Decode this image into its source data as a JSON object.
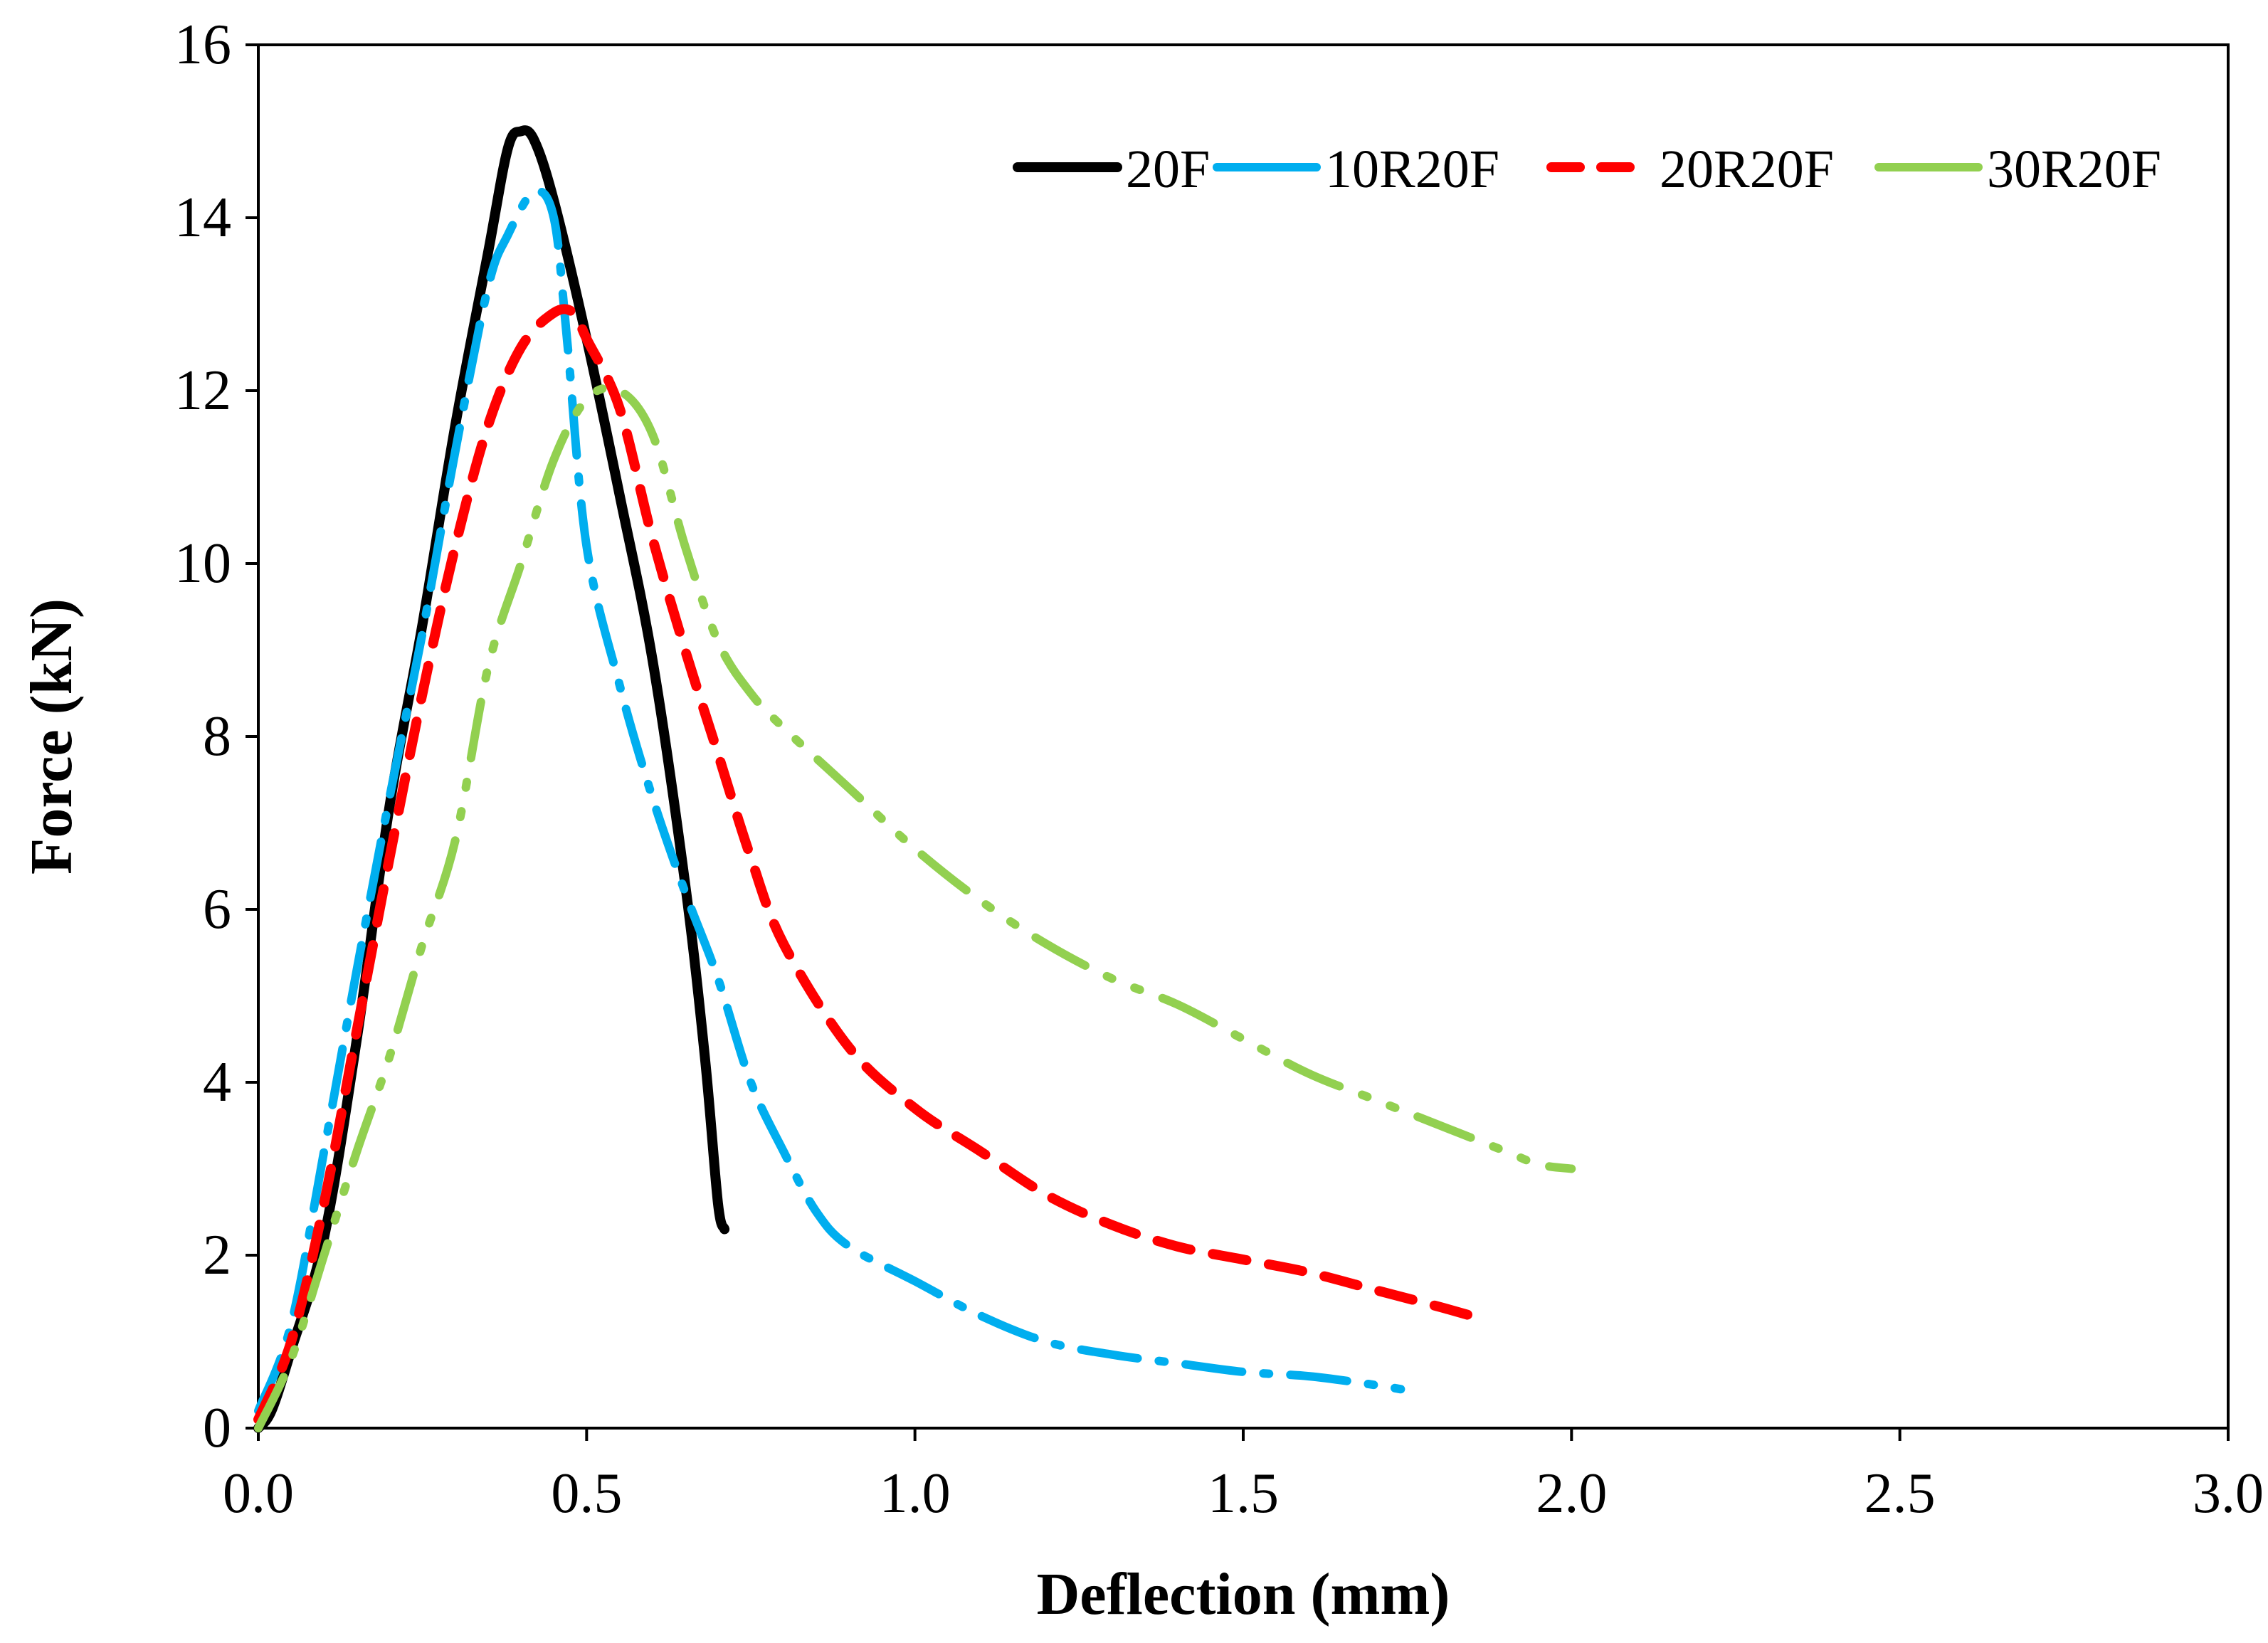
{
  "chart_data": {
    "type": "line",
    "title": "",
    "xlabel": "Deflection (mm)",
    "ylabel": "Force (kN)",
    "xlim": [
      0,
      3
    ],
    "ylim": [
      0,
      16
    ],
    "x_ticks": [
      0,
      0.5,
      1,
      1.5,
      2,
      2.5,
      3
    ],
    "x_tick_labels": [
      "0.0",
      "0.5",
      "1.0",
      "1.5",
      "2.0",
      "2.5",
      "3.0"
    ],
    "y_ticks": [
      0,
      2,
      4,
      6,
      8,
      10,
      12,
      14,
      16
    ],
    "y_tick_labels": [
      "0",
      "2",
      "4",
      "6",
      "8",
      "10",
      "12",
      "14",
      "16"
    ],
    "grid": false,
    "legend_position": "top-right",
    "series": [
      {
        "name": "20F",
        "color": "#000000",
        "style": "solid",
        "points": [
          [
            0,
            0
          ],
          [
            0.02,
            0.2
          ],
          [
            0.05,
            0.9
          ],
          [
            0.1,
            2.2
          ],
          [
            0.15,
            4.5
          ],
          [
            0.2,
            7.2
          ],
          [
            0.25,
            9.3
          ],
          [
            0.3,
            11.6
          ],
          [
            0.35,
            13.6
          ],
          [
            0.38,
            14.8
          ],
          [
            0.4,
            15
          ],
          [
            0.42,
            14.9
          ],
          [
            0.45,
            14.2
          ],
          [
            0.5,
            12.6
          ],
          [
            0.55,
            10.8
          ],
          [
            0.6,
            8.9
          ],
          [
            0.65,
            6.3
          ],
          [
            0.68,
            4.3
          ],
          [
            0.7,
            2.6
          ],
          [
            0.71,
            2.3
          ]
        ]
      },
      {
        "name": "10R20F",
        "color": "#00AEEF",
        "style": "dashdot",
        "points": [
          [
            0,
            0.2
          ],
          [
            0.05,
            1.2
          ],
          [
            0.1,
            3.2
          ],
          [
            0.15,
            5.3
          ],
          [
            0.2,
            7.3
          ],
          [
            0.25,
            9.2
          ],
          [
            0.3,
            11.3
          ],
          [
            0.35,
            13.2
          ],
          [
            0.38,
            13.8
          ],
          [
            0.42,
            14.3
          ],
          [
            0.45,
            14
          ],
          [
            0.47,
            12.6
          ],
          [
            0.5,
            10.2
          ],
          [
            0.55,
            8.6
          ],
          [
            0.6,
            7.3
          ],
          [
            0.65,
            6.2
          ],
          [
            0.7,
            5.2
          ],
          [
            0.75,
            4
          ],
          [
            0.8,
            3.2
          ],
          [
            0.85,
            2.5
          ],
          [
            0.9,
            2.1
          ],
          [
            1,
            1.7
          ],
          [
            1.1,
            1.3
          ],
          [
            1.2,
            1
          ],
          [
            1.3,
            0.85
          ],
          [
            1.4,
            0.75
          ],
          [
            1.5,
            0.65
          ],
          [
            1.6,
            0.6
          ],
          [
            1.7,
            0.5
          ],
          [
            1.74,
            0.45
          ]
        ]
      },
      {
        "name": "20R20F",
        "color": "#FF0000",
        "style": "dashed",
        "points": [
          [
            0,
            0.1
          ],
          [
            0.05,
            1
          ],
          [
            0.1,
            2.6
          ],
          [
            0.15,
            4.6
          ],
          [
            0.2,
            6.6
          ],
          [
            0.25,
            8.5
          ],
          [
            0.3,
            10.2
          ],
          [
            0.35,
            11.6
          ],
          [
            0.4,
            12.5
          ],
          [
            0.45,
            12.9
          ],
          [
            0.48,
            12.9
          ],
          [
            0.5,
            12.6
          ],
          [
            0.55,
            11.8
          ],
          [
            0.6,
            10.3
          ],
          [
            0.65,
            9
          ],
          [
            0.7,
            7.8
          ],
          [
            0.75,
            6.6
          ],
          [
            0.8,
            5.6
          ],
          [
            0.9,
            4.4
          ],
          [
            1,
            3.7
          ],
          [
            1.1,
            3.2
          ],
          [
            1.2,
            2.7
          ],
          [
            1.3,
            2.35
          ],
          [
            1.4,
            2.1
          ],
          [
            1.5,
            1.95
          ],
          [
            1.6,
            1.8
          ],
          [
            1.7,
            1.6
          ],
          [
            1.8,
            1.4
          ],
          [
            1.87,
            1.25
          ]
        ]
      },
      {
        "name": "30R20F",
        "color": "#92D050",
        "style": "dashdotdot",
        "points": [
          [
            0,
            0
          ],
          [
            0.05,
            0.8
          ],
          [
            0.1,
            2
          ],
          [
            0.15,
            3.2
          ],
          [
            0.2,
            4.3
          ],
          [
            0.25,
            5.6
          ],
          [
            0.3,
            6.8
          ],
          [
            0.35,
            8.8
          ],
          [
            0.4,
            10
          ],
          [
            0.45,
            11.2
          ],
          [
            0.5,
            11.9
          ],
          [
            0.55,
            12
          ],
          [
            0.6,
            11.5
          ],
          [
            0.65,
            10.2
          ],
          [
            0.7,
            9.1
          ],
          [
            0.75,
            8.5
          ],
          [
            0.8,
            8.1
          ],
          [
            0.9,
            7.4
          ],
          [
            1,
            6.7
          ],
          [
            1.1,
            6.1
          ],
          [
            1.2,
            5.6
          ],
          [
            1.3,
            5.2
          ],
          [
            1.4,
            4.9
          ],
          [
            1.5,
            4.5
          ],
          [
            1.6,
            4.1
          ],
          [
            1.7,
            3.8
          ],
          [
            1.8,
            3.5
          ],
          [
            1.9,
            3.2
          ],
          [
            1.95,
            3.05
          ],
          [
            2,
            3
          ]
        ]
      }
    ]
  }
}
